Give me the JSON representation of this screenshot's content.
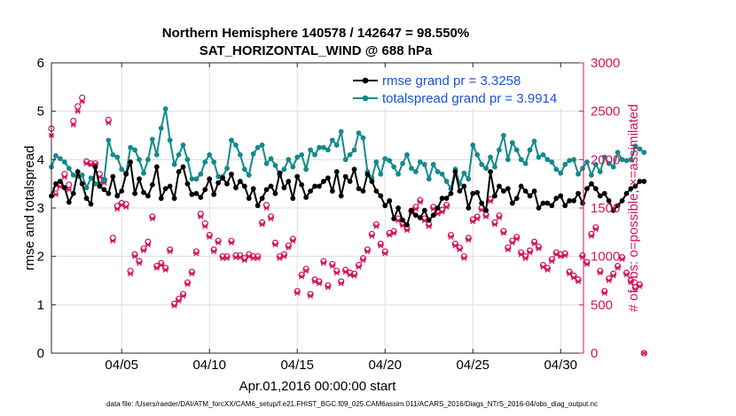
{
  "chart_data": {
    "type": "line",
    "title": "Northern Hemisphere 140578 / 142647 = 98.550%",
    "subtitle": "SAT_HORIZONTAL_WIND @ 688 hPa",
    "xlabel": "Apr.01,2016 00:00:00 start",
    "ylabel_left": "rmse and totalspread",
    "ylabel_right": "# of obs: o=possible; ×=assimilated",
    "footnote": "data file: /Users/raeder/DAI/ATM_forcXX/CAM6_setup/f.e21.FHIST_BGC.f09_025.CAM6assim.011/ACARS_2016/Diags_NTrS_2016-04/obs_diag_output.nc",
    "xlim": [
      1,
      31.3
    ],
    "ylim_left": [
      0,
      6
    ],
    "ylim_right": [
      0,
      3000
    ],
    "x_tick_values": [
      5,
      10,
      15,
      20,
      25,
      30
    ],
    "x_tick_labels": [
      "04/05",
      "04/10",
      "04/15",
      "04/20",
      "04/25",
      "04/30"
    ],
    "y_left_ticks": [
      "0",
      "1",
      "2",
      "3",
      "4",
      "5",
      "6"
    ],
    "y_right_ticks": [
      "0",
      "500",
      "1000",
      "1500",
      "2000",
      "2500",
      "3000"
    ],
    "colors": {
      "rmse": "#000000",
      "spread": "#148a8a",
      "obs": "#d4145a",
      "legend_text": "#1a52d6",
      "grid": "#dedede"
    },
    "x_start": 1.0,
    "x_step": 0.25,
    "series": [
      {
        "name": "rmse grand pr = 3.3258",
        "axis": "left",
        "values": [
          3.25,
          3.5,
          3.55,
          3.42,
          3.12,
          3.3,
          3.75,
          3.5,
          3.2,
          3.08,
          3.85,
          3.45,
          3.38,
          3.3,
          3.65,
          3.25,
          3.35,
          3.7,
          3.95,
          3.3,
          3.6,
          3.32,
          3.25,
          3.48,
          3.85,
          3.2,
          3.4,
          3.45,
          3.2,
          3.75,
          3.85,
          3.5,
          3.28,
          3.3,
          3.22,
          3.38,
          3.6,
          3.28,
          3.52,
          3.62,
          3.5,
          3.7,
          3.42,
          3.55,
          3.45,
          3.2,
          3.4,
          3.05,
          3.2,
          3.38,
          3.45,
          3.3,
          3.72,
          3.42,
          3.55,
          3.2,
          3.65,
          3.48,
          3.22,
          3.35,
          3.45,
          3.45,
          3.55,
          3.62,
          3.35,
          3.75,
          3.25,
          3.65,
          3.55,
          3.8,
          3.4,
          3.35,
          3.7,
          3.55,
          3.35,
          3.25,
          3.05,
          3.15,
          2.78,
          3.0,
          2.75,
          2.65,
          2.95,
          2.85,
          2.8,
          2.95,
          2.75,
          2.85,
          3.0,
          3.2,
          3.2,
          3.3,
          3.75,
          3.35,
          3.45,
          3.0,
          3.3,
          3.32,
          3.1,
          2.95,
          3.75,
          3.25,
          3.45,
          3.35,
          3.4,
          3.1,
          3.2,
          3.45,
          3.35,
          3.25,
          3.35,
          3.0,
          3.1,
          3.1,
          3.05,
          3.2,
          3.25,
          3.05,
          3.15,
          3.15,
          3.3,
          3.1,
          3.4,
          3.5,
          3.4,
          3.25,
          3.3,
          3.15,
          2.95,
          3.05,
          3.15,
          3.3,
          3.4,
          3.45,
          3.55,
          3.55
        ]
      },
      {
        "name": "totalspread grand pr = 3.9914",
        "axis": "left",
        "values": [
          3.85,
          4.08,
          4.02,
          3.95,
          3.82,
          3.68,
          3.65,
          3.68,
          3.42,
          3.62,
          3.5,
          3.5,
          3.58,
          4.4,
          4.1,
          4.05,
          3.8,
          3.72,
          4.25,
          4.2,
          4.0,
          3.72,
          4.0,
          4.42,
          4.1,
          4.65,
          5.05,
          4.4,
          3.9,
          4.1,
          4.3,
          4.0,
          3.6,
          3.6,
          3.7,
          3.95,
          4.1,
          3.95,
          3.65,
          3.65,
          3.82,
          4.4,
          4.3,
          4.1,
          3.8,
          3.68,
          4.12,
          4.25,
          4.3,
          3.92,
          4.02,
          3.88,
          3.68,
          3.8,
          4.0,
          3.85,
          4.05,
          4.1,
          3.8,
          4.2,
          4.1,
          4.25,
          4.25,
          4.2,
          4.4,
          4.3,
          4.58,
          4.0,
          4.1,
          4.2,
          4.55,
          4.45,
          3.75,
          3.62,
          3.95,
          3.7,
          4.02,
          3.98,
          3.85,
          3.7,
          3.92,
          4.1,
          3.82,
          3.75,
          3.95,
          3.9,
          3.6,
          3.9,
          3.75,
          3.7,
          3.55,
          3.4,
          3.8,
          3.5,
          3.72,
          3.6,
          4.3,
          4.1,
          3.9,
          3.82,
          4.05,
          3.85,
          4.2,
          4.5,
          4.0,
          4.35,
          4.2,
          4.0,
          3.92,
          4.2,
          4.38,
          4.05,
          4.1,
          4.0,
          3.95,
          3.8,
          3.72,
          3.9,
          3.98,
          4.0,
          3.7,
          3.82,
          3.95,
          3.68,
          3.9,
          3.75,
          4.05,
          3.92,
          3.85,
          4.15,
          4.0,
          3.98,
          4.0,
          4.28,
          4.22,
          4.15
        ]
      },
      {
        "name": "obs possible (o)",
        "axis": "right",
        "values": [
          2320,
          1700,
          1750,
          1850,
          1740,
          2400,
          2550,
          2640,
          1980,
          1960,
          1960,
          1850,
          1790,
          2410,
          1190,
          1520,
          1550,
          1540,
          850,
          1020,
          950,
          1080,
          1150,
          1410,
          900,
          930,
          880,
          1070,
          510,
          560,
          610,
          730,
          840,
          1050,
          1440,
          1340,
          1220,
          1070,
          1160,
          1000,
          1000,
          1160,
          1010,
          1010,
          980,
          1020,
          1000,
          1000,
          1350,
          1530,
          1410,
          1140,
          1000,
          1020,
          1110,
          1180,
          640,
          810,
          870,
          610,
          760,
          740,
          950,
          700,
          920,
          850,
          740,
          860,
          830,
          820,
          910,
          980,
          1070,
          1230,
          1330,
          1130,
          1050,
          1240,
          1260,
          1390,
          1340,
          1290,
          1470,
          1510,
          1580,
          1390,
          1330,
          1510,
          1460,
          1480,
          1530,
          1220,
          1130,
          1090,
          1000,
          1190,
          1380,
          1410,
          1500,
          1430,
          1590,
          1350,
          1420,
          1260,
          1090,
          1160,
          1200,
          1040,
          1000,
          1060,
          1150,
          1100,
          910,
          880,
          970,
          1040,
          1020,
          1030,
          840,
          800,
          760,
          1010,
          940,
          1230,
          1300,
          850,
          640,
          770,
          820,
          900,
          990,
          830,
          750,
          680,
          710,
          0
        ]
      },
      {
        "name": "obs assimilated (×)",
        "axis": "right",
        "values": [
          2250,
          1640,
          1720,
          1820,
          1690,
          2360,
          2500,
          2600,
          1960,
          1950,
          1950,
          1820,
          1760,
          2380,
          1160,
          1490,
          1530,
          1510,
          820,
          1000,
          930,
          1060,
          1120,
          1390,
          880,
          910,
          860,
          1050,
          490,
          540,
          590,
          710,
          820,
          1030,
          1410,
          1310,
          1200,
          1050,
          1140,
          980,
          980,
          1140,
          990,
          990,
          960,
          1000,
          980,
          980,
          1330,
          1500,
          1390,
          1120,
          980,
          1000,
          1090,
          1160,
          620,
          790,
          850,
          590,
          740,
          720,
          930,
          680,
          900,
          830,
          720,
          840,
          810,
          800,
          890,
          960,
          1050,
          1210,
          1310,
          1110,
          1030,
          1220,
          1240,
          1370,
          1320,
          1270,
          1450,
          1490,
          1560,
          1370,
          1310,
          1490,
          1440,
          1460,
          1510,
          1200,
          1110,
          1070,
          980,
          1170,
          1360,
          1390,
          1480,
          1410,
          1570,
          1330,
          1400,
          1240,
          1070,
          1140,
          1180,
          1020,
          980,
          1040,
          1130,
          1080,
          890,
          860,
          950,
          1020,
          1000,
          1010,
          820,
          780,
          740,
          990,
          920,
          1210,
          1280,
          830,
          620,
          750,
          800,
          880,
          970,
          810,
          730,
          660,
          690,
          0
        ]
      }
    ]
  }
}
